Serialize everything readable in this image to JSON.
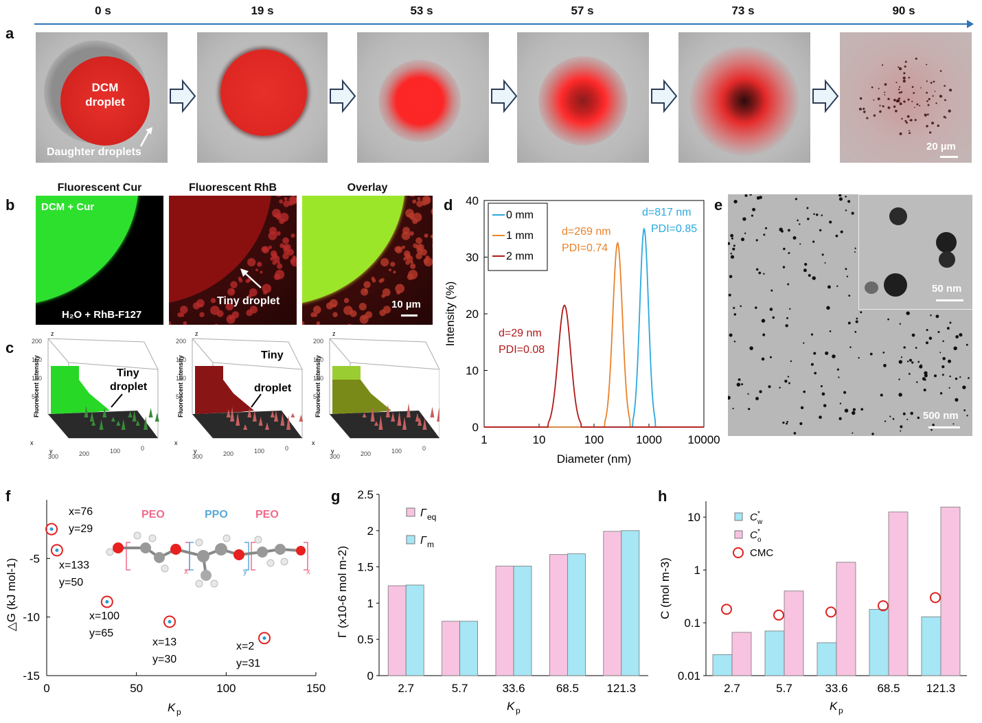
{
  "panel_a": {
    "label": "a",
    "times": [
      "0 s",
      "19 s",
      "53 s",
      "57 s",
      "73 s",
      "90 s"
    ],
    "dcm_label_line1": "DCM",
    "dcm_label_line2": "droplet",
    "daughter_label": "Daughter droplets",
    "scale_bar": "20 µm"
  },
  "panel_b": {
    "label": "b",
    "titles": [
      "Fluorescent Cur",
      "Fluorescent RhB",
      "Overlay"
    ],
    "dcm_cur": "DCM + Cur",
    "h2o_rhb": "H₂O + RhB-F127",
    "tiny_droplet": "Tiny droplet",
    "scale_bar": "10 µm"
  },
  "panel_c": {
    "label": "c",
    "z_axis": "z",
    "z_title": "Fluorescent intensity",
    "z_ticks": [
      "200",
      "150",
      "100",
      "50"
    ],
    "x_axis": "x",
    "y_axis": "y",
    "x_ticks": [
      "100",
      "200",
      "300"
    ],
    "y_ticks": [
      "300",
      "200",
      "100",
      "0"
    ],
    "tiny_droplet_1": "Tiny",
    "tiny_droplet_2": "droplet"
  },
  "panel_d": {
    "label": "d",
    "chart_data": {
      "type": "line",
      "xlabel": "Diameter (nm)",
      "ylabel": "Intensity (%)",
      "xscale": "log",
      "xlim": [
        1,
        10000
      ],
      "ylim": [
        0,
        40
      ],
      "x_ticks": [
        "1",
        "10",
        "100",
        "1000",
        "10000"
      ],
      "y_ticks": [
        "0",
        "10",
        "20",
        "30",
        "40"
      ],
      "series": [
        {
          "name": "0 mm",
          "color": "#2aa8e0",
          "peak_x": 817,
          "peak_y": 35,
          "width_log": 0.09,
          "d_text": "d=817 nm",
          "pdi_text": "PDI=0.85"
        },
        {
          "name": "1 mm",
          "color": "#e8822a",
          "peak_x": 269,
          "peak_y": 32.5,
          "width_log": 0.1,
          "d_text": "d=269 nm",
          "pdi_text": "PDI=0.74"
        },
        {
          "name": "2 mm",
          "color": "#b01818",
          "peak_x": 29,
          "peak_y": 21.5,
          "width_log": 0.13,
          "d_text": "d=29 nm",
          "pdi_text": "PDI=0.08"
        }
      ]
    }
  },
  "panel_e": {
    "label": "e",
    "scale_big": "500 nm",
    "scale_inset": "50 nm"
  },
  "panel_f": {
    "label": "f",
    "chart_data": {
      "type": "scatter",
      "xlabel": "Kp",
      "ylabel": "△G (kJ mol-1)",
      "xlim": [
        0,
        150
      ],
      "ylim": [
        -15,
        0
      ],
      "x_ticks": [
        "0",
        "50",
        "100",
        "150"
      ],
      "y_ticks": [
        "-5",
        "-10",
        "-15"
      ],
      "points": [
        {
          "x": 2.7,
          "y": -2.5,
          "l1": "x=76",
          "l2": "y=29"
        },
        {
          "x": 5.7,
          "y": -4.3,
          "l1": "x=133",
          "l2": "y=50"
        },
        {
          "x": 33.6,
          "y": -8.7,
          "l1": "x=100",
          "l2": "y=65"
        },
        {
          "x": 68.5,
          "y": -10.4,
          "l1": "x=13",
          "l2": "y=30"
        },
        {
          "x": 121.3,
          "y": -11.8,
          "l1": "x=2",
          "l2": "y=31"
        }
      ]
    },
    "molecule": {
      "peo1": "PEO",
      "ppo": "PPO",
      "peo2": "PEO",
      "x1": "x",
      "y": "y",
      "x2": "x"
    }
  },
  "panel_g": {
    "label": "g",
    "chart_data": {
      "type": "bar",
      "categories": [
        "2.7",
        "5.7",
        "33.6",
        "68.5",
        "121.3"
      ],
      "series": [
        {
          "name": "Γeq",
          "sym": "Γ",
          "sub": "eq",
          "color": "#f7c3e0",
          "values": [
            1.24,
            0.75,
            1.51,
            1.67,
            1.99
          ]
        },
        {
          "name": "Γm",
          "sym": "Γ",
          "sub": "m",
          "color": "#a6e6f5",
          "values": [
            1.25,
            0.75,
            1.51,
            1.68,
            2.0
          ]
        }
      ],
      "xlabel": "Kp",
      "ylabel": "Γ (x10-6 mol m-2)",
      "ylim": [
        0,
        2.5
      ],
      "y_ticks": [
        "0",
        "0.5",
        "1",
        "1.5",
        "2",
        "2.5"
      ]
    }
  },
  "panel_h": {
    "label": "h",
    "chart_data": {
      "type": "bar",
      "yscale": "log",
      "categories": [
        "2.7",
        "5.7",
        "33.6",
        "68.5",
        "121.3"
      ],
      "series": [
        {
          "name": "C*w",
          "sym": "C",
          "sub": "w",
          "color": "#a6e6f5",
          "values": [
            0.025,
            0.07,
            0.042,
            0.18,
            0.13
          ]
        },
        {
          "name": "C*o",
          "sym": "C",
          "sub": "o",
          "color": "#f7c3e0",
          "values": [
            0.066,
            0.4,
            1.4,
            12.5,
            15.5
          ]
        }
      ],
      "cmc": {
        "name": "CMC",
        "color": "#e02020",
        "values": [
          0.18,
          0.14,
          0.16,
          0.21,
          0.3
        ]
      },
      "xlabel": "Kp",
      "ylabel": "C (mol m-3)",
      "ylim": [
        0.01,
        20
      ],
      "y_ticks": [
        "0.01",
        "0.1",
        "1",
        "10"
      ]
    }
  }
}
